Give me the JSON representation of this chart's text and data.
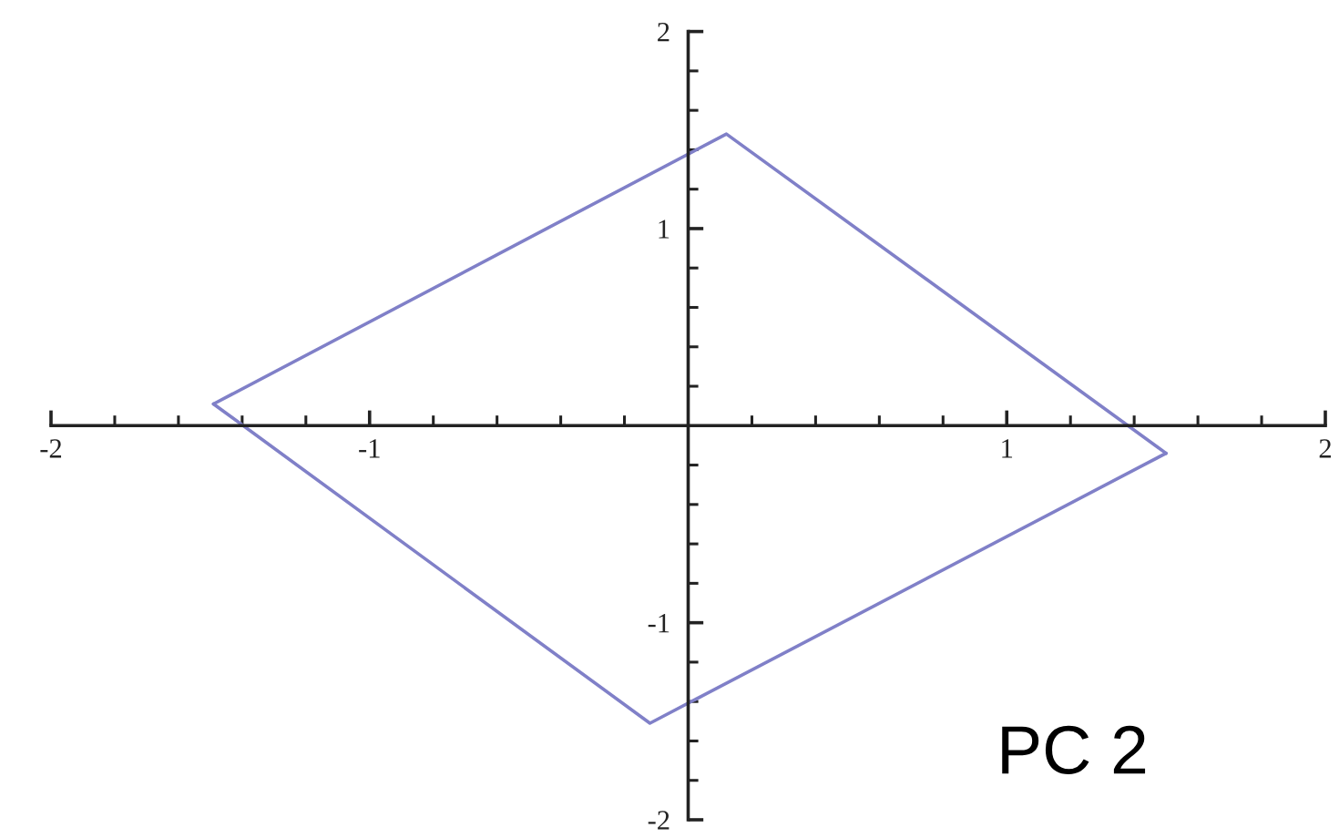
{
  "chart_data": {
    "type": "line",
    "series": [
      {
        "color": "#8080c8",
        "x": [
          -1.49,
          0.12,
          1.5
        ],
        "values": [
          0.11,
          1.48,
          -0.14
        ]
      },
      {
        "color": "#8080c8",
        "x": [
          -1.49,
          -0.12,
          1.5
        ],
        "values": [
          0.11,
          -1.51,
          -0.14
        ]
      }
    ],
    "xlim": [
      -2,
      2
    ],
    "ylim": [
      -2,
      2
    ],
    "xticks": [
      -2,
      {
        "value": -1.8,
        "label": null
      },
      {
        "value": -1.6,
        "label": null
      },
      {
        "value": -1.4,
        "label": null
      },
      {
        "value": -1.2,
        "label": null
      },
      -1,
      {
        "value": -0.8,
        "label": null
      },
      {
        "value": -0.6,
        "label": null
      },
      {
        "value": -0.4,
        "label": null
      },
      {
        "value": -0.2,
        "label": null
      },
      {
        "value": 0.2,
        "label": null
      },
      {
        "value": 0.4,
        "label": null
      },
      {
        "value": 0.6,
        "label": null
      },
      {
        "value": 0.8,
        "label": null
      },
      1,
      {
        "value": 1.2,
        "label": null
      },
      {
        "value": 1.4,
        "label": null
      },
      {
        "value": 1.6,
        "label": null
      },
      {
        "value": 1.8,
        "label": null
      },
      2
    ],
    "yticks": [
      -2,
      {
        "value": -1.8,
        "label": null
      },
      {
        "value": -1.6,
        "label": null
      },
      {
        "value": -1.4,
        "label": null
      },
      {
        "value": -1.2,
        "label": null
      },
      -1,
      {
        "value": -0.8,
        "label": null
      },
      {
        "value": -0.6,
        "label": null
      },
      {
        "value": -0.4,
        "label": null
      },
      {
        "value": -0.2,
        "label": null
      },
      {
        "value": 0.2,
        "label": null
      },
      {
        "value": 0.4,
        "label": null
      },
      {
        "value": 0.6,
        "label": null
      },
      {
        "value": 0.8,
        "label": null
      },
      1,
      {
        "value": 1.2,
        "label": null
      },
      {
        "value": 1.4,
        "label": null
      },
      {
        "value": 1.6,
        "label": null
      },
      {
        "value": 1.8,
        "label": null
      },
      2
    ],
    "grid": false,
    "marker": "none",
    "line_style": "solid",
    "annotations": [
      "PC 2"
    ]
  }
}
